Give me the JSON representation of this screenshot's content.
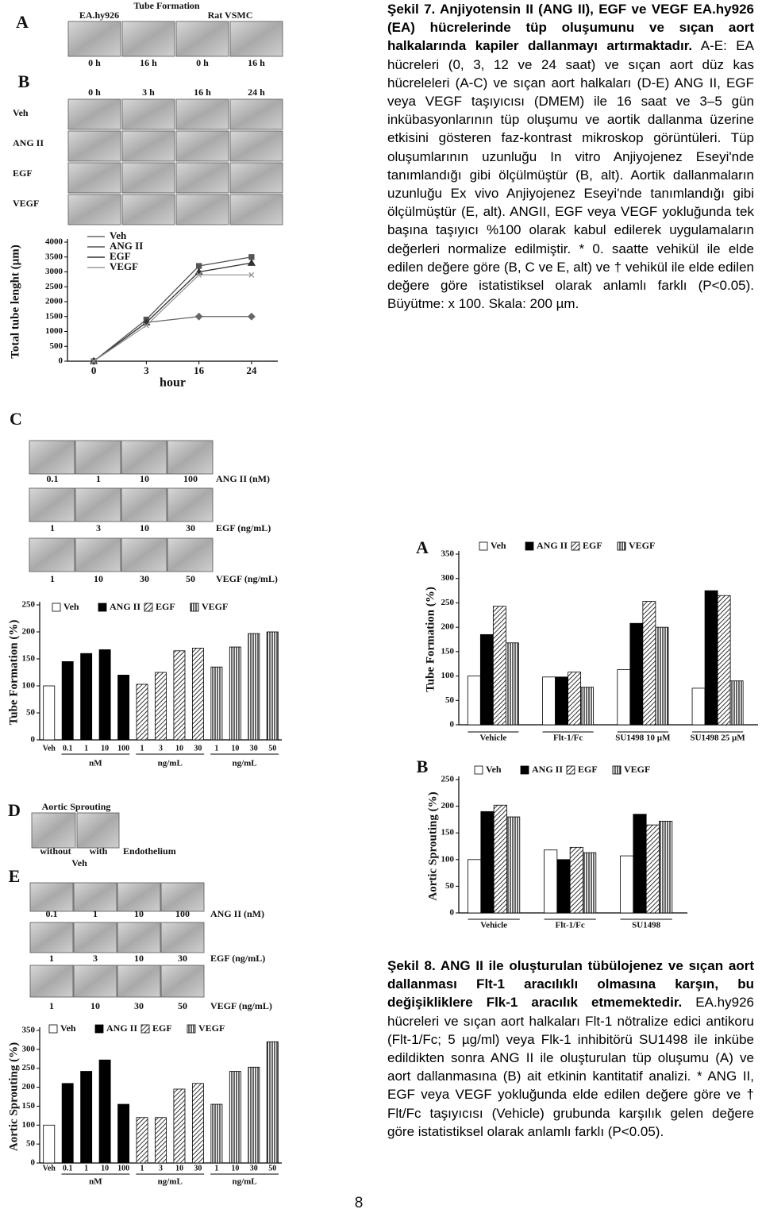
{
  "figure7": {
    "caption_title": "Şekil 7. Anjiyotensin II (ANG II), EGF ve VEGF EA.hy926 (EA) hücrelerinde tüp oluşumunu ve sıçan aort halkalarında kapiler dallanmayı artırmaktadır.",
    "caption_body": "A-E: EA hücreleri (0, 3, 12 ve 24 saat) ve sıçan aort düz kas hücreleleri (A-C) ve sıçan aort halkaları (D-E) ANG II, EGF veya VEGF taşıyıcısı (DMEM) ile 16 saat ve 3–5 gün inkübasyonlarının tüp oluşumu ve aortik dallanma üzerine etkisini gösteren faz-kontrast mikroskop görüntüleri. Tüp oluşumlarının uzunluğu In vitro Anjiyojenez Eseyi'nde tanımlandığı gibi ölçülmüştür (B, alt). Aortik dallanmaların uzunluğu Ex vivo Anjiyojenez Eseyi'nde tanımlandığı gibi ölçülmüştür (E, alt). ANGII, EGF veya VEGF yokluğunda tek başına taşıyıcı %100 olarak kabul edilerek uygulamaların değerleri normalize edilmiştir. * 0. saatte vehikül ile elde edilen değere göre (B, C ve E, alt) ve † vehikül ile elde edilen değere göre istatistiksel olarak anlamlı farklı (P<0.05). Büyütme: x 100. Skala: 200 µm.",
    "panel_a": {
      "letter": "A",
      "title": "Tube Formation",
      "cells": [
        "EA.hy926",
        "Rat VSMC"
      ],
      "times": [
        "0 h",
        "16 h",
        "0 h",
        "16 h"
      ]
    },
    "panel_b": {
      "letter": "B",
      "times": [
        "0 h",
        "3 h",
        "16 h",
        "24 h"
      ],
      "rows": [
        "Veh",
        "ANG II",
        "EGF",
        "VEGF"
      ]
    },
    "panel_c": {
      "letter": "C",
      "rows": [
        {
          "doses": [
            "0.1",
            "1",
            "10",
            "100"
          ],
          "label": "ANG II (nM)"
        },
        {
          "doses": [
            "1",
            "3",
            "10",
            "30"
          ],
          "label": "EGF (ng/mL)"
        },
        {
          "doses": [
            "1",
            "10",
            "30",
            "50"
          ],
          "label": "VEGF (ng/mL)"
        }
      ]
    },
    "panel_d": {
      "letter": "D",
      "title": "Aortic Sprouting",
      "options": [
        "without",
        "with"
      ],
      "label": "Endothelium",
      "treatment": "Veh"
    },
    "panel_e": {
      "letter": "E",
      "rows": [
        {
          "doses": [
            "0.1",
            "1",
            "10",
            "100"
          ],
          "label": "ANG II (nM)"
        },
        {
          "doses": [
            "1",
            "3",
            "10",
            "30"
          ],
          "label": "EGF (ng/mL)"
        },
        {
          "doses": [
            "1",
            "10",
            "30",
            "50"
          ],
          "label": "VEGF (ng/mL)"
        }
      ]
    }
  },
  "chart_data": [
    {
      "type": "line",
      "y_label": "Total tube lenght (µm)",
      "x_label": "hour",
      "categories": [
        "0",
        "3",
        "16",
        "24"
      ],
      "series": [
        {
          "name": "Veh",
          "color": "#666666",
          "marker": "diamond",
          "values": [
            0,
            1300,
            1500,
            1500
          ]
        },
        {
          "name": "ANG II",
          "color": "#555555",
          "marker": "square",
          "values": [
            0,
            1400,
            3200,
            3500
          ]
        },
        {
          "name": "EGF",
          "color": "#333333",
          "marker": "triangle",
          "values": [
            0,
            1300,
            3000,
            3300
          ]
        },
        {
          "name": "VEGF",
          "color": "#999999",
          "marker": "cross",
          "values": [
            0,
            1200,
            2900,
            2900
          ]
        }
      ],
      "ylim": [
        0,
        4000
      ],
      "yticks": [
        0,
        500,
        1000,
        1500,
        2000,
        2500,
        3000,
        3500,
        4000
      ]
    },
    {
      "type": "bar",
      "y_label": "Tube Formation (%)",
      "groups": [
        {
          "categories": [
            "Veh"
          ]
        },
        {
          "label": "nM",
          "categories": [
            "0.1",
            "1",
            "10",
            "100"
          ]
        },
        {
          "label": "ng/mL",
          "categories": [
            "1",
            "3",
            "10",
            "30"
          ]
        },
        {
          "label": "ng/mL",
          "categories": [
            "1",
            "10",
            "30",
            "50"
          ]
        }
      ],
      "series": [
        {
          "name": "Veh",
          "color": "#ffffff",
          "pattern": "none",
          "values": [
            100,
            null,
            null,
            null,
            null,
            null,
            null,
            null,
            null,
            null,
            null,
            null,
            null
          ]
        },
        {
          "name": "ANG II",
          "color": "#000000",
          "pattern": "none",
          "values": [
            null,
            145,
            160,
            167,
            120,
            null,
            null,
            null,
            null,
            null,
            null,
            null,
            null
          ]
        },
        {
          "name": "EGF",
          "color": "#000000",
          "pattern": "diagonal",
          "values": [
            null,
            null,
            null,
            null,
            null,
            103,
            125,
            165,
            170,
            null,
            null,
            null,
            null
          ]
        },
        {
          "name": "VEGF",
          "color": "#000000",
          "pattern": "vertical",
          "values": [
            null,
            null,
            null,
            null,
            null,
            null,
            null,
            null,
            null,
            135,
            172,
            197,
            200
          ]
        }
      ],
      "ylim": [
        0,
        250
      ],
      "yticks": [
        0,
        50,
        100,
        150,
        200,
        250
      ]
    },
    {
      "type": "bar",
      "y_label": "Aortic Sprouting (%)",
      "groups": [
        {
          "categories": [
            "Veh"
          ]
        },
        {
          "label": "nM",
          "categories": [
            "0.1",
            "1",
            "10",
            "100"
          ]
        },
        {
          "label": "ng/mL",
          "categories": [
            "1",
            "3",
            "10",
            "30"
          ]
        },
        {
          "label": "ng/mL",
          "categories": [
            "1",
            "10",
            "30",
            "50"
          ]
        }
      ],
      "series": [
        {
          "name": "Veh",
          "color": "#ffffff",
          "pattern": "none",
          "values": [
            100,
            null,
            null,
            null,
            null,
            null,
            null,
            null,
            null,
            null,
            null,
            null,
            null
          ]
        },
        {
          "name": "ANG II",
          "color": "#000000",
          "pattern": "none",
          "values": [
            null,
            210,
            242,
            272,
            155,
            null,
            null,
            null,
            null,
            null,
            null,
            null,
            null
          ]
        },
        {
          "name": "EGF",
          "color": "#000000",
          "pattern": "diagonal",
          "values": [
            null,
            null,
            null,
            null,
            null,
            120,
            120,
            195,
            210,
            null,
            null,
            null,
            null
          ]
        },
        {
          "name": "VEGF",
          "color": "#000000",
          "pattern": "vertical",
          "values": [
            null,
            null,
            null,
            null,
            null,
            null,
            null,
            null,
            null,
            155,
            242,
            253,
            320
          ]
        }
      ],
      "ylim": [
        0,
        350
      ],
      "yticks": [
        0,
        50,
        100,
        150,
        200,
        250,
        300,
        350
      ]
    },
    {
      "type": "grouped_bar",
      "panel": "A",
      "y_label": "Tube Formation (%)",
      "categories": [
        "Vehicle",
        "Flt-1/Fc",
        "SU1498 10 µM",
        "SU1498 25 µM"
      ],
      "series": [
        {
          "name": "Veh",
          "color": "#ffffff",
          "pattern": "none",
          "values": [
            100,
            98,
            113,
            75
          ]
        },
        {
          "name": "ANG II",
          "color": "#000000",
          "pattern": "none",
          "values": [
            185,
            98,
            208,
            275
          ]
        },
        {
          "name": "EGF",
          "color": "#000000",
          "pattern": "diagonal",
          "values": [
            243,
            108,
            253,
            265
          ]
        },
        {
          "name": "VEGF",
          "color": "#000000",
          "pattern": "vertical",
          "values": [
            168,
            77,
            200,
            90
          ]
        }
      ],
      "ylim": [
        0,
        350
      ],
      "yticks": [
        0,
        50,
        100,
        150,
        200,
        250,
        300,
        350
      ]
    },
    {
      "type": "grouped_bar",
      "panel": "B",
      "y_label": "Aortic Sprouting (%)",
      "categories": [
        "Vehicle",
        "Flt-1/Fc",
        "SU1498"
      ],
      "series": [
        {
          "name": "Veh",
          "color": "#ffffff",
          "pattern": "none",
          "values": [
            100,
            118,
            107
          ]
        },
        {
          "name": "ANG II",
          "color": "#000000",
          "pattern": "none",
          "values": [
            190,
            100,
            185
          ]
        },
        {
          "name": "EGF",
          "color": "#000000",
          "pattern": "diagonal",
          "values": [
            202,
            123,
            165
          ]
        },
        {
          "name": "VEGF",
          "color": "#000000",
          "pattern": "vertical",
          "values": [
            180,
            113,
            172
          ]
        }
      ],
      "ylim": [
        0,
        250
      ],
      "yticks": [
        0,
        50,
        100,
        150,
        200,
        250
      ]
    }
  ],
  "figure8": {
    "caption_title": "Şekil 8. ANG II ile oluşturulan tübülojenez ve sıçan aort dallanması Flt-1 aracılıklı olmasına karşın, bu değişikliklere Flk-1 aracılık etmemektedir.",
    "caption_body": "EA.hy926 hücreleri ve sıçan aort halkaları Flt-1 nötralize edici antikoru (Flt-1/Fc; 5 µg/ml) veya Flk-1 inhibitörü SU1498 ile inkübe edildikten sonra ANG II ile oluşturulan tüp oluşumu (A) ve aort dallanmasına (B) ait etkinin kantitatif analizi. * ANG II, EGF veya VEGF yokluğunda elde edilen değere göre ve † Flt/Fc taşıyıcısı (Vehicle) grubunda karşılık gelen değere göre istatistiksel olarak anlamlı farklı (P<0.05)."
  },
  "page_number": "8"
}
